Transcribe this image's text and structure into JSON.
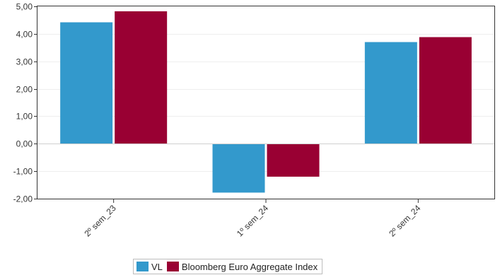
{
  "chart_data": {
    "type": "bar",
    "categories": [
      "2º sem_23",
      "1º sem_24",
      "2º sem_24"
    ],
    "series": [
      {
        "name": "VL",
        "values": [
          4.42,
          -1.78,
          3.7
        ],
        "color": "#3399cc"
      },
      {
        "name": "Bloomberg Euro Aggregate Index",
        "values": [
          4.82,
          -1.2,
          3.88
        ],
        "color": "#990033"
      }
    ],
    "ylim": [
      -2.0,
      5.0
    ],
    "yticks": [
      5.0,
      4.0,
      3.0,
      2.0,
      1.0,
      0.0,
      -1.0,
      -2.0
    ],
    "ytick_labels": [
      "5,00",
      "4,00",
      "3,00",
      "2,00",
      "1,00",
      "0,00",
      "-1,00",
      "-2,00"
    ],
    "grid": true,
    "legend_position": "bottom"
  },
  "legend": {
    "vl_label": "VL",
    "bench_label": "Bloomberg Euro Aggregate Index"
  }
}
